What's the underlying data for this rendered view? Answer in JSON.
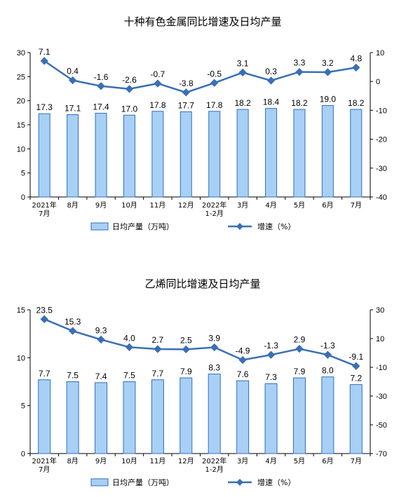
{
  "chart_data": [
    {
      "type": "bar+line",
      "title": "十种有色金属同比增速及日均产量",
      "categories": [
        [
          "2021年",
          "7月"
        ],
        [
          "8月"
        ],
        [
          "9月"
        ],
        [
          "10月"
        ],
        [
          "11月"
        ],
        [
          "12月"
        ],
        [
          "2022年",
          "1-2月"
        ],
        [
          "3月"
        ],
        [
          "4月"
        ],
        [
          "5月"
        ],
        [
          "6月"
        ],
        [
          "7月"
        ]
      ],
      "series": [
        {
          "name": "日均产量（万吨）",
          "kind": "bar",
          "axis": "left",
          "values": [
            17.3,
            17.1,
            17.4,
            17.0,
            17.8,
            17.7,
            17.8,
            18.2,
            18.4,
            18.2,
            19.0,
            18.2
          ],
          "labels": [
            "17.3",
            "17.1",
            "17.4",
            "17.0",
            "17.8",
            "17.7",
            "17.8",
            "18.2",
            "18.4",
            "18.2",
            "19.0",
            "18.2"
          ]
        },
        {
          "name": "增速（%）",
          "kind": "line",
          "axis": "right",
          "values": [
            7.1,
            0.4,
            -1.6,
            -2.6,
            -0.7,
            -3.8,
            -0.5,
            3.1,
            0.3,
            3.3,
            3.2,
            4.8
          ],
          "labels": [
            "7.1",
            "0.4",
            "-1.6",
            "-2.6",
            "-0.7",
            "-3.8",
            "-0.5",
            "3.1",
            "0.3",
            "3.3",
            "3.2",
            "4.8"
          ]
        }
      ],
      "ylim_left": [
        0,
        30
      ],
      "yticks_left": [
        "0",
        "5",
        "10",
        "15",
        "20",
        "25",
        "30"
      ],
      "ylim_right": [
        -40,
        10
      ],
      "yticks_right": [
        "-40",
        "-30",
        "-20",
        "-10",
        "0",
        "10"
      ],
      "legend": "bottom"
    },
    {
      "type": "bar+line",
      "title": "乙烯同比增速及日均产量",
      "categories": [
        [
          "2021年",
          "7月"
        ],
        [
          "8月"
        ],
        [
          "9月"
        ],
        [
          "10月"
        ],
        [
          "11月"
        ],
        [
          "12月"
        ],
        [
          "2022年",
          "1-2月"
        ],
        [
          "3月"
        ],
        [
          "4月"
        ],
        [
          "5月"
        ],
        [
          "6月"
        ],
        [
          "7月"
        ]
      ],
      "series": [
        {
          "name": "日均产量（万吨）",
          "kind": "bar",
          "axis": "left",
          "values": [
            7.7,
            7.5,
            7.4,
            7.5,
            7.7,
            7.9,
            8.3,
            7.6,
            7.3,
            7.9,
            8.0,
            7.2
          ],
          "labels": [
            "7.7",
            "7.5",
            "7.4",
            "7.5",
            "7.7",
            "7.9",
            "8.3",
            "7.6",
            "7.3",
            "7.9",
            "8.0",
            "7.2"
          ]
        },
        {
          "name": "增速（%）",
          "kind": "line",
          "axis": "right",
          "values": [
            23.5,
            15.3,
            9.3,
            4.0,
            2.7,
            2.5,
            3.9,
            -4.9,
            -1.3,
            2.9,
            -1.3,
            -9.1
          ],
          "labels": [
            "23.5",
            "15.3",
            "9.3",
            "4.0",
            "2.7",
            "2.5",
            "3.9",
            "-4.9",
            "-1.3",
            "2.9",
            "-1.3",
            "-9.1"
          ]
        }
      ],
      "ylim_left": [
        0,
        15
      ],
      "yticks_left": [
        "0",
        "5",
        "10",
        "15"
      ],
      "ylim_right": [
        -70,
        30
      ],
      "yticks_right": [
        "-70",
        "-50",
        "-30",
        "-10",
        "10",
        "30"
      ],
      "legend": "bottom"
    }
  ],
  "colors": {
    "bar_fill": "#a8d0f5",
    "bar_stroke": "#2f6fc0",
    "line": "#3a6fb4",
    "axis": "#000000"
  }
}
